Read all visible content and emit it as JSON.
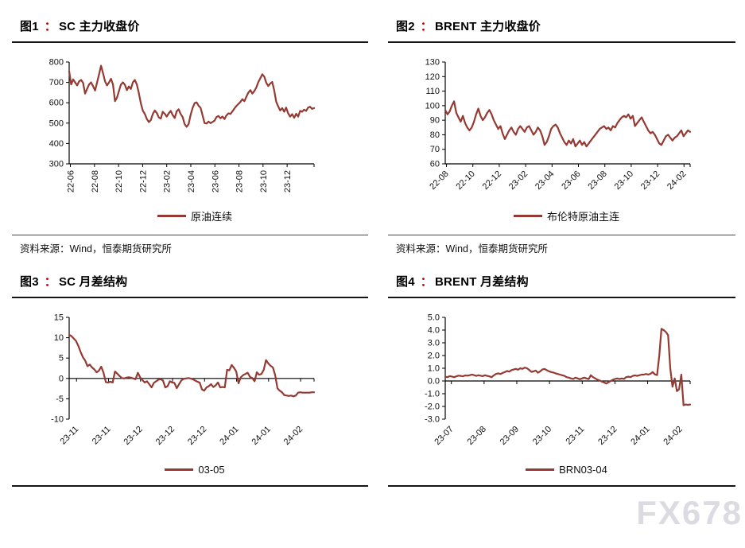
{
  "colors": {
    "line": "#943a32",
    "colon_accent": "#c00000",
    "axis": "#000000",
    "watermark_gray": "#c9c9d2"
  },
  "watermark": "FX678",
  "figures": [
    {
      "label": "图1",
      "colon": "：",
      "name": "SC 主力收盘价",
      "source": "资料来源：Wind，恒泰期货研究所"
    },
    {
      "label": "图2",
      "colon": "：",
      "name": "BRENT 主力收盘价",
      "source": "资料来源：Wind，恒泰期货研究所"
    },
    {
      "label": "图3",
      "colon": "：",
      "name": "SC 月差结构"
    },
    {
      "label": "图4",
      "colon": "：",
      "name": "BRENT 月差结构"
    }
  ],
  "chart_data": [
    {
      "type": "line",
      "title": "SC 主力收盘价",
      "series_name": "原油连续",
      "ylim": [
        300,
        800
      ],
      "ytick_step": 100,
      "ytick_decimals": 0,
      "x_labels": [
        "22-06",
        "22-08",
        "22-10",
        "22-12",
        "23-02",
        "23-04",
        "23-06",
        "23-08",
        "23-10",
        "23-12"
      ],
      "x_label_rotation": 90,
      "x_label_span": [
        0.005,
        0.89
      ],
      "x_axis_at": 300,
      "grid": false,
      "legend_position": "bottom",
      "values": [
        755,
        690,
        715,
        700,
        685,
        705,
        712,
        698,
        645,
        668,
        690,
        700,
        682,
        660,
        700,
        740,
        782,
        745,
        705,
        685,
        700,
        718,
        690,
        608,
        625,
        658,
        690,
        700,
        688,
        662,
        680,
        668,
        700,
        712,
        690,
        648,
        598,
        560,
        545,
        520,
        505,
        515,
        545,
        562,
        550,
        528,
        522,
        556,
        546,
        532,
        548,
        560,
        540,
        525,
        558,
        568,
        545,
        530,
        495,
        482,
        495,
        540,
        575,
        598,
        602,
        585,
        575,
        538,
        500,
        498,
        508,
        500,
        506,
        512,
        530,
        535,
        524,
        532,
        520,
        538,
        548,
        545,
        558,
        572,
        584,
        594,
        604,
        618,
        608,
        630,
        650,
        662,
        645,
        658,
        675,
        702,
        720,
        740,
        728,
        698,
        682,
        694,
        702,
        660,
        605,
        582,
        562,
        574,
        556,
        576,
        548,
        532,
        544,
        526,
        546,
        532,
        560,
        556,
        566,
        560,
        576,
        580,
        570,
        574
      ]
    },
    {
      "type": "line",
      "title": "BRENT 主力收盘价",
      "series_name": "布伦特原油主连",
      "ylim": [
        60,
        130
      ],
      "ytick_step": 10,
      "ytick_decimals": 0,
      "x_labels": [
        "22-08",
        "22-10",
        "22-12",
        "23-02",
        "23-04",
        "23-06",
        "23-08",
        "23-10",
        "23-12",
        "24-02"
      ],
      "x_label_rotation": 45,
      "x_label_span": [
        0.005,
        0.975
      ],
      "x_axis_at": 60,
      "grid": false,
      "legend_position": "bottom",
      "values": [
        97,
        94,
        96,
        100,
        103,
        95,
        92,
        89,
        93,
        88,
        85,
        83,
        85,
        89,
        94,
        98,
        93,
        90,
        92,
        95,
        97,
        94,
        90,
        87,
        84,
        86,
        81,
        77,
        80,
        83,
        85,
        82,
        80,
        84,
        86,
        84,
        82,
        85,
        86,
        83,
        80,
        82,
        85,
        83,
        79,
        73,
        75,
        79,
        84,
        86,
        87,
        85,
        81,
        78,
        75,
        73,
        76,
        74,
        77,
        72,
        74,
        76,
        73,
        75,
        72,
        74,
        76,
        78,
        80,
        82,
        84,
        85,
        86,
        84,
        85,
        83,
        86,
        85,
        88,
        90,
        92,
        93,
        92,
        94,
        91,
        93,
        86,
        88,
        90,
        92,
        89,
        86,
        83,
        81,
        82,
        80,
        77,
        74,
        73,
        76,
        79,
        80,
        78,
        76,
        78,
        79,
        81,
        83,
        79,
        81,
        83,
        82
      ]
    },
    {
      "type": "line",
      "title": "SC 月差结构",
      "series_name": "03-05",
      "ylim": [
        -10,
        15
      ],
      "ytick_step": 5,
      "ytick_decimals": 0,
      "x_labels": [
        "23-11",
        "23-11",
        "23-12",
        "23-12",
        "23-12",
        "24-01",
        "24-01",
        "24-02"
      ],
      "x_label_rotation": 45,
      "x_label_span": [
        0.03,
        0.945
      ],
      "x_axis_at": 0,
      "grid": false,
      "legend_position": "bottom",
      "values": [
        10.7,
        10.4,
        9.8,
        9.2,
        8.0,
        6.5,
        5.2,
        4.4,
        3.0,
        3.4,
        2.7,
        2.2,
        1.5,
        1.9,
        2.9,
        1.4,
        -0.9,
        -1.0,
        -0.8,
        -1.0,
        1.7,
        1.2,
        0.6,
        0.1,
        0.0,
        0.2,
        0.3,
        0.2,
        0.0,
        -0.2,
        1.4,
        0.3,
        -0.4,
        -1.0,
        -0.7,
        -1.4,
        -2.2,
        -1.1,
        -0.7,
        -0.3,
        -0.2,
        -0.5,
        -2.2,
        -1.9,
        -0.7,
        -1.0,
        -1.1,
        -2.4,
        -1.4,
        -0.5,
        -0.1,
        0.0,
        0.1,
        0.0,
        -0.2,
        -0.5,
        -0.8,
        -1.0,
        -2.7,
        -3.0,
        -2.2,
        -1.9,
        -1.4,
        -2.1,
        -1.7,
        -1.0,
        -2.2,
        -2.1,
        -2.2,
        2.1,
        2.0,
        3.3,
        2.6,
        1.7,
        -1.2,
        0.3,
        0.8,
        1.1,
        1.4,
        0.4,
        0.1,
        -0.7,
        1.5,
        0.9,
        1.1,
        2.1,
        4.5,
        3.7,
        3.1,
        2.7,
        0.8,
        -2.4,
        -3.0,
        -3.4,
        -4.1,
        -4.2,
        -4.3,
        -4.2,
        -4.4,
        -4.2,
        -3.5,
        -3.4,
        -3.5,
        -3.5,
        -3.5,
        -3.5,
        -3.4,
        -3.4
      ]
    },
    {
      "type": "line",
      "title": "BRENT 月差结构",
      "series_name": "BRN03-04",
      "ylim": [
        -3,
        5
      ],
      "ytick_step": 1,
      "ytick_decimals": 1,
      "x_labels": [
        "23-07",
        "23-08",
        "23-09",
        "23-10",
        "23-11",
        "23-12",
        "24-01",
        "24-02"
      ],
      "x_label_rotation": 45,
      "x_label_span": [
        0.025,
        0.96
      ],
      "x_axis_at": 0,
      "grid": false,
      "legend_position": "bottom",
      "values": [
        0.33,
        0.3,
        0.38,
        0.35,
        0.3,
        0.36,
        0.42,
        0.4,
        0.37,
        0.44,
        0.42,
        0.45,
        0.5,
        0.46,
        0.4,
        0.45,
        0.42,
        0.38,
        0.45,
        0.4,
        0.36,
        0.3,
        0.44,
        0.55,
        0.6,
        0.55,
        0.63,
        0.7,
        0.78,
        0.74,
        0.85,
        0.9,
        0.95,
        0.88,
        1.0,
        0.95,
        1.05,
        1.0,
        0.88,
        0.72,
        0.75,
        0.82,
        0.65,
        0.75,
        0.9,
        0.95,
        0.85,
        0.76,
        0.7,
        0.66,
        0.6,
        0.55,
        0.5,
        0.45,
        0.4,
        0.3,
        0.26,
        0.2,
        0.16,
        0.26,
        0.2,
        0.14,
        0.2,
        0.26,
        0.2,
        0.15,
        0.45,
        0.3,
        0.2,
        0.1,
        0.04,
        -0.05,
        -0.12,
        -0.2,
        -0.1,
        0.0,
        0.1,
        0.16,
        0.2,
        0.15,
        0.2,
        0.16,
        0.3,
        0.34,
        0.3,
        0.4,
        0.44,
        0.4,
        0.45,
        0.5,
        0.5,
        0.55,
        0.5,
        0.56,
        0.7,
        0.52,
        0.46,
        2.0,
        4.1,
        4.0,
        3.85,
        3.6,
        1.0,
        -0.45,
        0.2,
        -0.8,
        -0.65,
        0.5,
        -1.9,
        -1.85,
        -1.88,
        -1.85
      ]
    }
  ]
}
